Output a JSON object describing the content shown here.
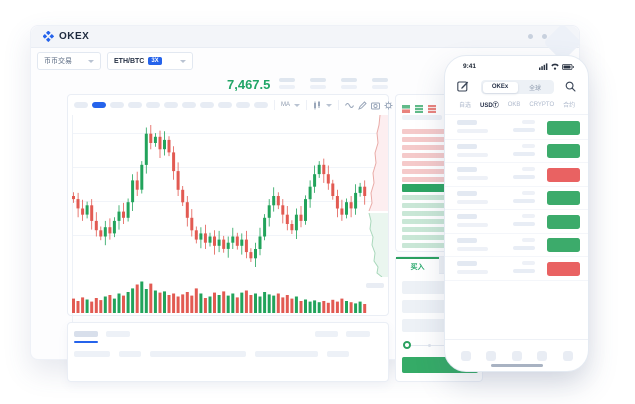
{
  "colors": {
    "brand_blue": "#2563eb",
    "price_green": "#21a567",
    "candle_green": "#22a35b",
    "candle_red": "#e25a52",
    "light_green": "#c9e7d6",
    "light_red": "#f5caca",
    "phone_green": "#3cab6b",
    "phone_red": "#e96262"
  },
  "window": {
    "brand": "OKEX",
    "window_dot_count": 3,
    "market_selector_label": "币币交易",
    "pair_selector": {
      "pair": "ETH/BTC",
      "leverage": "3X"
    },
    "last_price": "7,467.5",
    "stat_placeholder_count": 4,
    "toolbar": {
      "pill_count": 11,
      "active_pill_index": 1,
      "ma_label": "MA",
      "icons": [
        "candle-interval-icon",
        "wave-icon",
        "pencil-icon",
        "camera-icon",
        "gear-icon",
        "fullscreen-icon"
      ]
    },
    "bottom_panel": {
      "tab_count": 2,
      "right_pill_count": 2,
      "header_bar_widths": [
        36,
        22,
        96,
        63,
        22
      ]
    }
  },
  "orderbook": {
    "view_toggle_icons": [
      "book-split-icon",
      "book-bids-icon",
      "book-asks-icon"
    ],
    "ask_depth_percent": [
      72,
      80,
      76,
      84,
      66,
      78,
      58
    ],
    "last_price_percent": 100,
    "bid_depth_percent": [
      68,
      76,
      72,
      82,
      64,
      74,
      60
    ],
    "buy_tab_label": "买入"
  },
  "trade_form": {
    "field_count": 3,
    "slider_tick_count": 2
  },
  "phone": {
    "status_time": "9:41",
    "status_icons": [
      "cellular-icon",
      "wifi-icon",
      "battery-icon"
    ],
    "compose_icon": "compose-icon",
    "search_icon": "search-icon",
    "segmented": {
      "options": [
        "OKEx",
        "全球"
      ],
      "active_index": 0
    },
    "category_tabs": {
      "items": [
        "自选",
        "USDⓉ",
        "OKB",
        "CRYPTO",
        "合约"
      ],
      "active_index": 1
    },
    "rows": [
      "up",
      "up",
      "down",
      "up",
      "up",
      "up",
      "down"
    ],
    "nav_icon_count": 5
  },
  "chart_data": {
    "type": "candlestick",
    "note_axes": "unlabeled decorative marketing chart",
    "closes": [
      55,
      52,
      50,
      53,
      48,
      45,
      43,
      46,
      44,
      48,
      51,
      49,
      54,
      61,
      58,
      66,
      76,
      73,
      75,
      71,
      74,
      70,
      64,
      58,
      54,
      49,
      45,
      42,
      44,
      41,
      43,
      40,
      42,
      39,
      41,
      43,
      40,
      42,
      38,
      36,
      39,
      43,
      49,
      53,
      56,
      53,
      50,
      47,
      45,
      50,
      48,
      55,
      59,
      63,
      66,
      63,
      60,
      56,
      52,
      50,
      54,
      52,
      57,
      59,
      56
    ],
    "volumes": [
      38,
      30,
      42,
      35,
      28,
      40,
      33,
      45,
      50,
      38,
      55,
      48,
      60,
      72,
      85,
      95,
      70,
      88,
      65,
      58,
      62,
      50,
      55,
      45,
      52,
      60,
      48,
      72,
      55,
      40,
      45,
      58,
      50,
      62,
      48,
      55,
      42,
      58,
      65,
      50,
      55,
      45,
      60,
      52,
      48,
      55,
      42,
      50,
      38,
      45,
      30,
      35,
      28,
      32,
      26,
      30,
      24,
      34,
      28,
      38,
      30,
      26,
      22,
      28,
      20
    ],
    "depth_ask_points": [
      [
        14,
        0
      ],
      [
        13,
        10
      ],
      [
        11,
        18
      ],
      [
        12,
        28
      ],
      [
        9,
        38
      ],
      [
        10,
        48
      ],
      [
        7,
        58
      ],
      [
        8,
        68
      ],
      [
        5,
        78
      ],
      [
        6,
        88
      ],
      [
        3,
        96
      ]
    ],
    "depth_bid_points": [
      [
        3,
        98
      ],
      [
        5,
        106
      ],
      [
        4,
        114
      ],
      [
        7,
        122
      ],
      [
        6,
        130
      ],
      [
        9,
        138
      ],
      [
        8,
        146
      ],
      [
        12,
        152
      ],
      [
        11,
        158
      ],
      [
        16,
        162
      ]
    ]
  }
}
